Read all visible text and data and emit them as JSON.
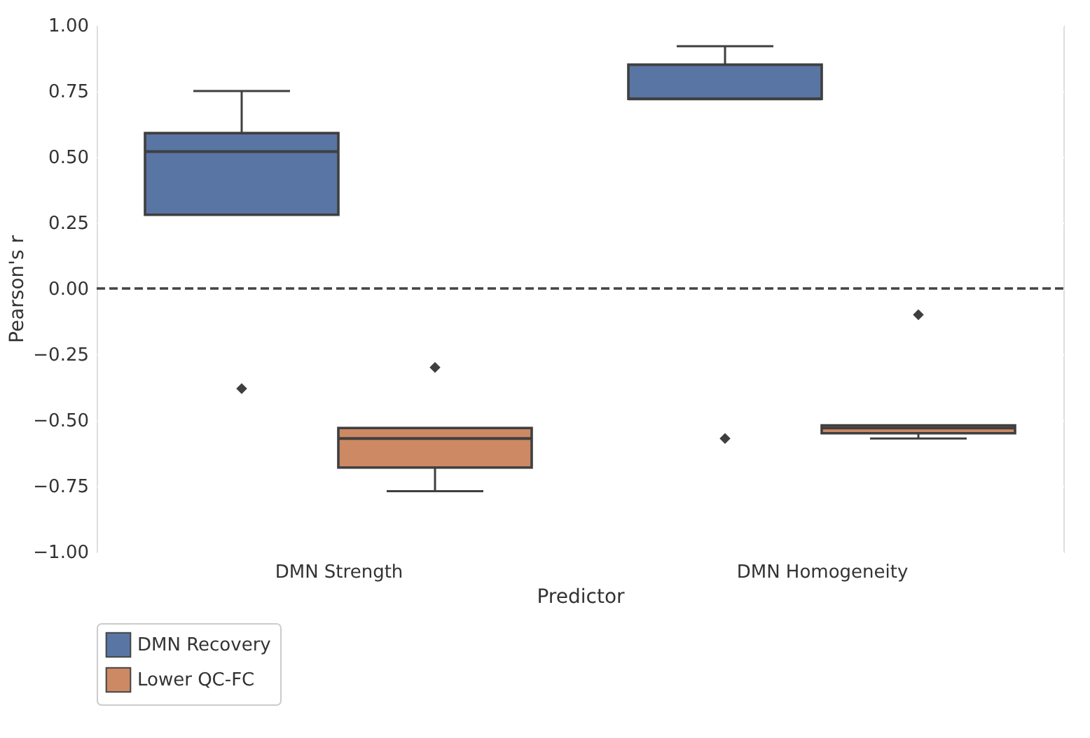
{
  "chart_data": {
    "type": "box",
    "xlabel": "Predictor",
    "ylabel": "Pearson's r",
    "categories": [
      "DMN Strength",
      "DMN Homogeneity"
    ],
    "series": [
      {
        "name": "DMN Recovery",
        "color": "#5875a4",
        "boxes": [
          {
            "low": 0.28,
            "q1": 0.28,
            "median": 0.52,
            "q3": 0.59,
            "high": 0.75,
            "outliers": [
              -0.38
            ]
          },
          {
            "low": 0.72,
            "q1": 0.72,
            "median": 0.72,
            "q3": 0.85,
            "high": 0.92,
            "outliers": [
              -0.57
            ]
          }
        ]
      },
      {
        "name": "Lower QC-FC",
        "color": "#cc8963",
        "boxes": [
          {
            "low": -0.77,
            "q1": -0.68,
            "median": -0.57,
            "q3": -0.53,
            "high": -0.53,
            "outliers": [
              -0.3
            ]
          },
          {
            "low": -0.57,
            "q1": -0.55,
            "median": -0.53,
            "q3": -0.52,
            "high": -0.52,
            "outliers": [
              -0.1
            ]
          }
        ]
      }
    ],
    "ylim": [
      -1.0,
      1.0
    ],
    "yticks": [
      {
        "value": -1.0,
        "label": "−1.00"
      },
      {
        "value": -0.75,
        "label": "−0.75"
      },
      {
        "value": -0.5,
        "label": "−0.50"
      },
      {
        "value": -0.25,
        "label": "−0.25"
      },
      {
        "value": 0,
        "label": "0.00"
      },
      {
        "value": 0.25,
        "label": "0.25"
      },
      {
        "value": 0.5,
        "label": "0.50"
      },
      {
        "value": 0.75,
        "label": "0.75"
      },
      {
        "value": 1.0,
        "label": "1.00"
      }
    ],
    "ref_lines": [
      {
        "axis": "y",
        "value": 0,
        "color": "#444444",
        "line_style": "dashed"
      }
    ],
    "grid": "y",
    "legend": "bottom",
    "marker": "diamond"
  }
}
